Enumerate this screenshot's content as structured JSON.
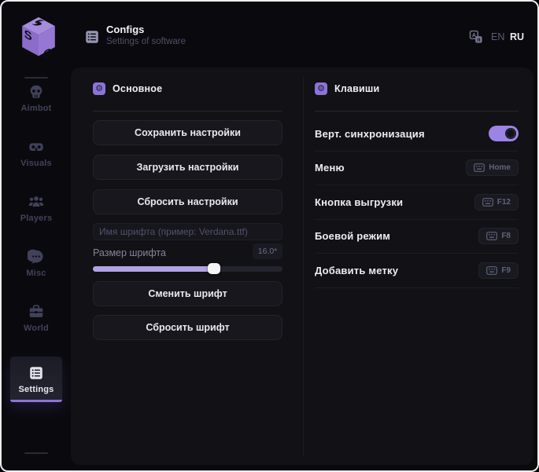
{
  "header": {
    "title": "Configs",
    "subtitle": "Settings of software",
    "lang_en": "EN",
    "lang_ru": "RU",
    "active_language": "RU"
  },
  "icons": {
    "section_gear": "⚙"
  },
  "sidebar": {
    "items": [
      {
        "label": "Aimbot",
        "icon": "skull-icon",
        "active": false
      },
      {
        "label": "Visuals",
        "icon": "goggles-icon",
        "active": false
      },
      {
        "label": "Players",
        "icon": "people-icon",
        "active": false
      },
      {
        "label": "Misc",
        "icon": "comment-dots-icon",
        "active": false
      },
      {
        "label": "World",
        "icon": "briefcase-icon",
        "active": false
      },
      {
        "label": "Settings",
        "icon": "list-icon",
        "active": true
      }
    ]
  },
  "main_panel": {
    "title": "Основное",
    "save_button": "Сохранить настройки",
    "load_button": "Загрузить настройки",
    "reset_button": "Сбросить настройки",
    "font_name_placeholder": "Имя шрифта (пример: Verdana.ttf)",
    "font_name_value": "",
    "font_size_label": "Размер шрифта",
    "font_size_value": "16.0*",
    "font_size_percent": 64,
    "change_font_button": "Сменить шрифт",
    "reset_font_button": "Сбросить шрифт"
  },
  "keys_panel": {
    "title": "Клавиши",
    "rows": [
      {
        "label": "Верт. синхронизация",
        "type": "toggle",
        "state": true
      },
      {
        "label": "Меню",
        "type": "keybind",
        "key": "Home"
      },
      {
        "label": "Кнопка выгрузки",
        "type": "keybind",
        "key": "F12"
      },
      {
        "label": "Боевой режим",
        "type": "keybind",
        "key": "F8"
      },
      {
        "label": "Добавить метку",
        "type": "keybind",
        "key": "F9"
      }
    ]
  },
  "colors": {
    "accent": "#8d73d8",
    "slider_fill": "#b2a2e4",
    "toggle_on": "#9d84e4",
    "card_bg": "#111116",
    "page_bg": "#0a0a0e"
  }
}
